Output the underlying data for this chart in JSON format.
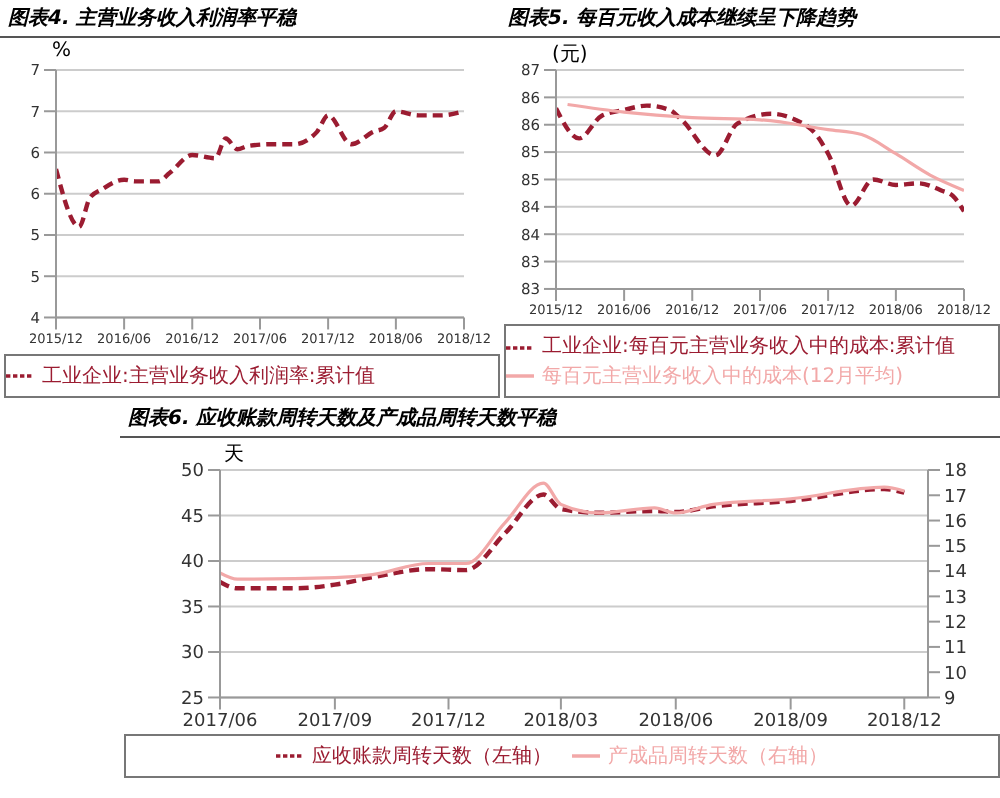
{
  "chart_data": [
    {
      "type": "line",
      "title": "图表4. 主营业务收入利润率平稳",
      "ylabel": "%",
      "grid": "y",
      "legend": "bottom",
      "xlim": [
        "2015-12",
        "2018-12"
      ],
      "xticks": [
        {
          "value": "2015-12",
          "label": "2015/12"
        },
        {
          "value": "2016-06",
          "label": "2016/06"
        },
        {
          "value": "2016-12",
          "label": "2016/12"
        },
        {
          "value": "2017-06",
          "label": "2017/06"
        },
        {
          "value": "2017-12",
          "label": "2017/12"
        },
        {
          "value": "2018-06",
          "label": "2018/06"
        },
        {
          "value": "2018-12",
          "label": "2018/12"
        }
      ],
      "ylim": [
        4,
        7
      ],
      "yticks": [
        {
          "value": 4,
          "label": "4"
        },
        {
          "value": 4.5,
          "label": "5"
        },
        {
          "value": 5,
          "label": "5"
        },
        {
          "value": 5.5,
          "label": "6"
        },
        {
          "value": 6,
          "label": "6"
        },
        {
          "value": 6.5,
          "label": "7"
        },
        {
          "value": 7,
          "label": "7"
        }
      ],
      "series": [
        {
          "name": "工业企业:主营业务收入利润率:累计值",
          "color": "#9b1c31",
          "line_style": "dashed",
          "x": [
            "2015-12",
            "2016-02",
            "2016-03",
            "2016-04",
            "2016-06",
            "2016-07",
            "2016-09",
            "2016-10",
            "2016-12",
            "2017-02",
            "2017-03",
            "2017-04",
            "2017-05",
            "2017-07",
            "2017-09",
            "2017-11",
            "2017-12",
            "2018-02",
            "2018-04",
            "2018-05",
            "2018-06",
            "2018-08",
            "2018-10",
            "2018-12"
          ],
          "values": [
            5.8,
            5.1,
            5.45,
            5.55,
            5.67,
            5.65,
            5.65,
            5.75,
            5.97,
            5.93,
            6.17,
            6.04,
            6.08,
            6.1,
            6.1,
            6.25,
            6.45,
            6.1,
            6.25,
            6.3,
            6.5,
            6.45,
            6.45,
            6.5
          ]
        }
      ]
    },
    {
      "type": "line",
      "title": "图表5. 每百元收入成本继续呈下降趋势",
      "ylabel": "(元)",
      "grid": "y",
      "legend": "bottom",
      "xlim": [
        "2015-12",
        "2018-12"
      ],
      "xticks": [
        {
          "value": "2015-12",
          "label": "2015/12"
        },
        {
          "value": "2016-06",
          "label": "2016/06"
        },
        {
          "value": "2016-12",
          "label": "2016/12"
        },
        {
          "value": "2017-06",
          "label": "2017/06"
        },
        {
          "value": "2017-12",
          "label": "2017/12"
        },
        {
          "value": "2018-06",
          "label": "2018/06"
        },
        {
          "value": "2018-12",
          "label": "2018/12"
        }
      ],
      "ylim": [
        83,
        87
      ],
      "yticks": [
        {
          "value": 83,
          "label": "83"
        },
        {
          "value": 83.5,
          "label": "83"
        },
        {
          "value": 84,
          "label": "84"
        },
        {
          "value": 84.5,
          "label": "84"
        },
        {
          "value": 85,
          "label": "85"
        },
        {
          "value": 85.5,
          "label": "85"
        },
        {
          "value": 86,
          "label": "86"
        },
        {
          "value": 86.5,
          "label": "86"
        },
        {
          "value": 87,
          "label": "87"
        }
      ],
      "series": [
        {
          "name": "工业企业:每百元主营业务收入中的成本:累计值",
          "color": "#9b1c31",
          "line_style": "dashed",
          "x": [
            "2015-12",
            "2016-02",
            "2016-04",
            "2016-06",
            "2016-08",
            "2016-10",
            "2016-11",
            "2017-02",
            "2017-04",
            "2017-07",
            "2017-09",
            "2017-11",
            "2017-12",
            "2018-02",
            "2018-04",
            "2018-06",
            "2018-08",
            "2018-10",
            "2018-11",
            "2018-12"
          ],
          "values": [
            86.3,
            85.75,
            86.16,
            86.27,
            86.35,
            86.27,
            86.1,
            85.44,
            86.02,
            86.2,
            86.1,
            85.8,
            85.47,
            84.52,
            85.0,
            84.9,
            84.93,
            84.8,
            84.7,
            84.42
          ]
        },
        {
          "name": "每百元主营业务收入中的成本(12月平均)",
          "color": "#f2a8a8",
          "line_style": "solid",
          "x": [
            "2016-01",
            "2016-06",
            "2016-12",
            "2017-06",
            "2017-12",
            "2018-03",
            "2018-06",
            "2018-09",
            "2018-12"
          ],
          "values": [
            86.37,
            86.23,
            86.13,
            86.09,
            85.91,
            85.82,
            85.47,
            85.08,
            84.8
          ]
        }
      ]
    },
    {
      "type": "line",
      "title": "图表6. 应收账款周转天数及产成品周转天数平稳",
      "ylabel": "天",
      "grid": "y",
      "legend": "bottom",
      "xlim": [
        "2017-06",
        "2018-12-20"
      ],
      "xticks": [
        {
          "value": "2017-06",
          "label": "2017/06"
        },
        {
          "value": "2017-09",
          "label": "2017/09"
        },
        {
          "value": "2017-12",
          "label": "2017/12"
        },
        {
          "value": "2018-03",
          "label": "2018/03"
        },
        {
          "value": "2018-06",
          "label": "2018/06"
        },
        {
          "value": "2018-09",
          "label": "2018/09"
        },
        {
          "value": "2018-12",
          "label": "2018/12"
        }
      ],
      "ylim": [
        25,
        50
      ],
      "yticks": [
        25,
        30,
        35,
        40,
        45,
        50
      ],
      "y2lim": [
        9,
        18
      ],
      "y2ticks": [
        9,
        10,
        11,
        12,
        13,
        14,
        15,
        16,
        17,
        18
      ],
      "series": [
        {
          "name": "应收账款周转天数（左轴）",
          "color": "#9b1c31",
          "line_style": "dashed",
          "x": [
            "2017-06",
            "2017-06-15",
            "2017-08",
            "2017-09",
            "2017-10",
            "2017-11-15",
            "2017-12-15",
            "2018-01-15",
            "2018-02-15",
            "2018-03",
            "2018-04",
            "2018-05-15",
            "2018-06",
            "2018-07",
            "2018-09",
            "2018-11-15",
            "2018-12"
          ],
          "values": [
            37.7,
            37.0,
            37.0,
            37.4,
            38.2,
            39.1,
            39.0,
            43.0,
            47.3,
            45.7,
            45.3,
            45.5,
            45.4,
            46.0,
            46.6,
            47.9,
            47.5
          ]
        },
        {
          "name": "产成品周转天数（右轴）",
          "color": "#f2a8a8",
          "line_style": "solid",
          "axis": "y2",
          "x": [
            "2017-06",
            "2017-06-15",
            "2017-09",
            "2017-10",
            "2017-11-15",
            "2017-12-15",
            "2018-01-15",
            "2018-02-15",
            "2018-03",
            "2018-04",
            "2018-05-15",
            "2018-06",
            "2018-07",
            "2018-09",
            "2018-11-15",
            "2018-12"
          ],
          "values": [
            13.93,
            13.68,
            13.74,
            13.86,
            14.3,
            14.3,
            15.9,
            17.48,
            16.64,
            16.3,
            16.5,
            16.3,
            16.64,
            16.86,
            17.32,
            17.17
          ]
        }
      ]
    }
  ]
}
